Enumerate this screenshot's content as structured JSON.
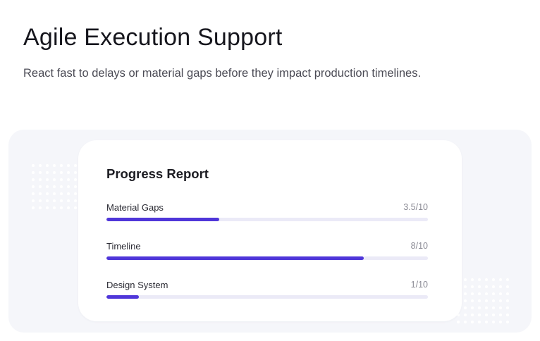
{
  "header": {
    "title": "Agile Execution Support",
    "subtitle": "React fast to delays or material gaps before they impact production timelines."
  },
  "card": {
    "title": "Progress Report",
    "metrics": [
      {
        "label": "Material Gaps",
        "value_text": "3.5/10",
        "progress": 0.35
      },
      {
        "label": "Timeline",
        "value_text": "8/10",
        "progress": 0.8
      },
      {
        "label": "Design System",
        "value_text": "1/10",
        "progress": 0.1
      }
    ]
  },
  "colors": {
    "accent": "#4f36d9",
    "track": "#ebeaf7",
    "panel_background": "#f5f6fa",
    "dot_pattern": "#ffffff"
  }
}
